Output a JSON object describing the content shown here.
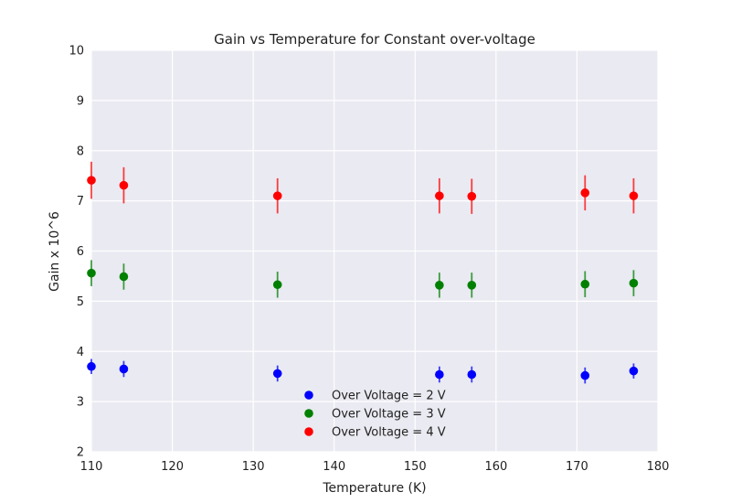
{
  "chart_data": {
    "type": "scatter",
    "title": "Gain vs Temperature for Constant over-voltage",
    "xlabel": "Temperature (K)",
    "ylabel": "Gain x 10^6",
    "xlim": [
      110,
      180
    ],
    "ylim": [
      2,
      10
    ],
    "xticks": [
      "110",
      "120",
      "130",
      "140",
      "150",
      "160",
      "170",
      "180"
    ],
    "yticks": [
      "2",
      "3",
      "4",
      "5",
      "6",
      "7",
      "8",
      "9",
      "10"
    ],
    "grid": true,
    "legend_position": "lower-center",
    "series": [
      {
        "name": "Over Voltage = 2 V",
        "color": "#0000ff",
        "x": [
          110,
          114,
          133,
          153,
          157,
          171,
          177
        ],
        "y": [
          3.7,
          3.65,
          3.56,
          3.54,
          3.54,
          3.52,
          3.61
        ],
        "yerr": [
          0.15,
          0.16,
          0.16,
          0.16,
          0.16,
          0.16,
          0.15
        ]
      },
      {
        "name": "Over Voltage = 3 V",
        "color": "#008000",
        "x": [
          110,
          114,
          133,
          153,
          157,
          171,
          177
        ],
        "y": [
          5.56,
          5.49,
          5.33,
          5.32,
          5.32,
          5.34,
          5.36
        ],
        "yerr": [
          0.26,
          0.26,
          0.26,
          0.25,
          0.25,
          0.26,
          0.26
        ]
      },
      {
        "name": "Over Voltage = 4 V",
        "color": "#ff0000",
        "x": [
          110,
          114,
          133,
          153,
          157,
          171,
          177
        ],
        "y": [
          7.41,
          7.31,
          7.1,
          7.1,
          7.09,
          7.16,
          7.1
        ],
        "yerr": [
          0.37,
          0.36,
          0.35,
          0.35,
          0.35,
          0.35,
          0.35
        ]
      }
    ]
  }
}
